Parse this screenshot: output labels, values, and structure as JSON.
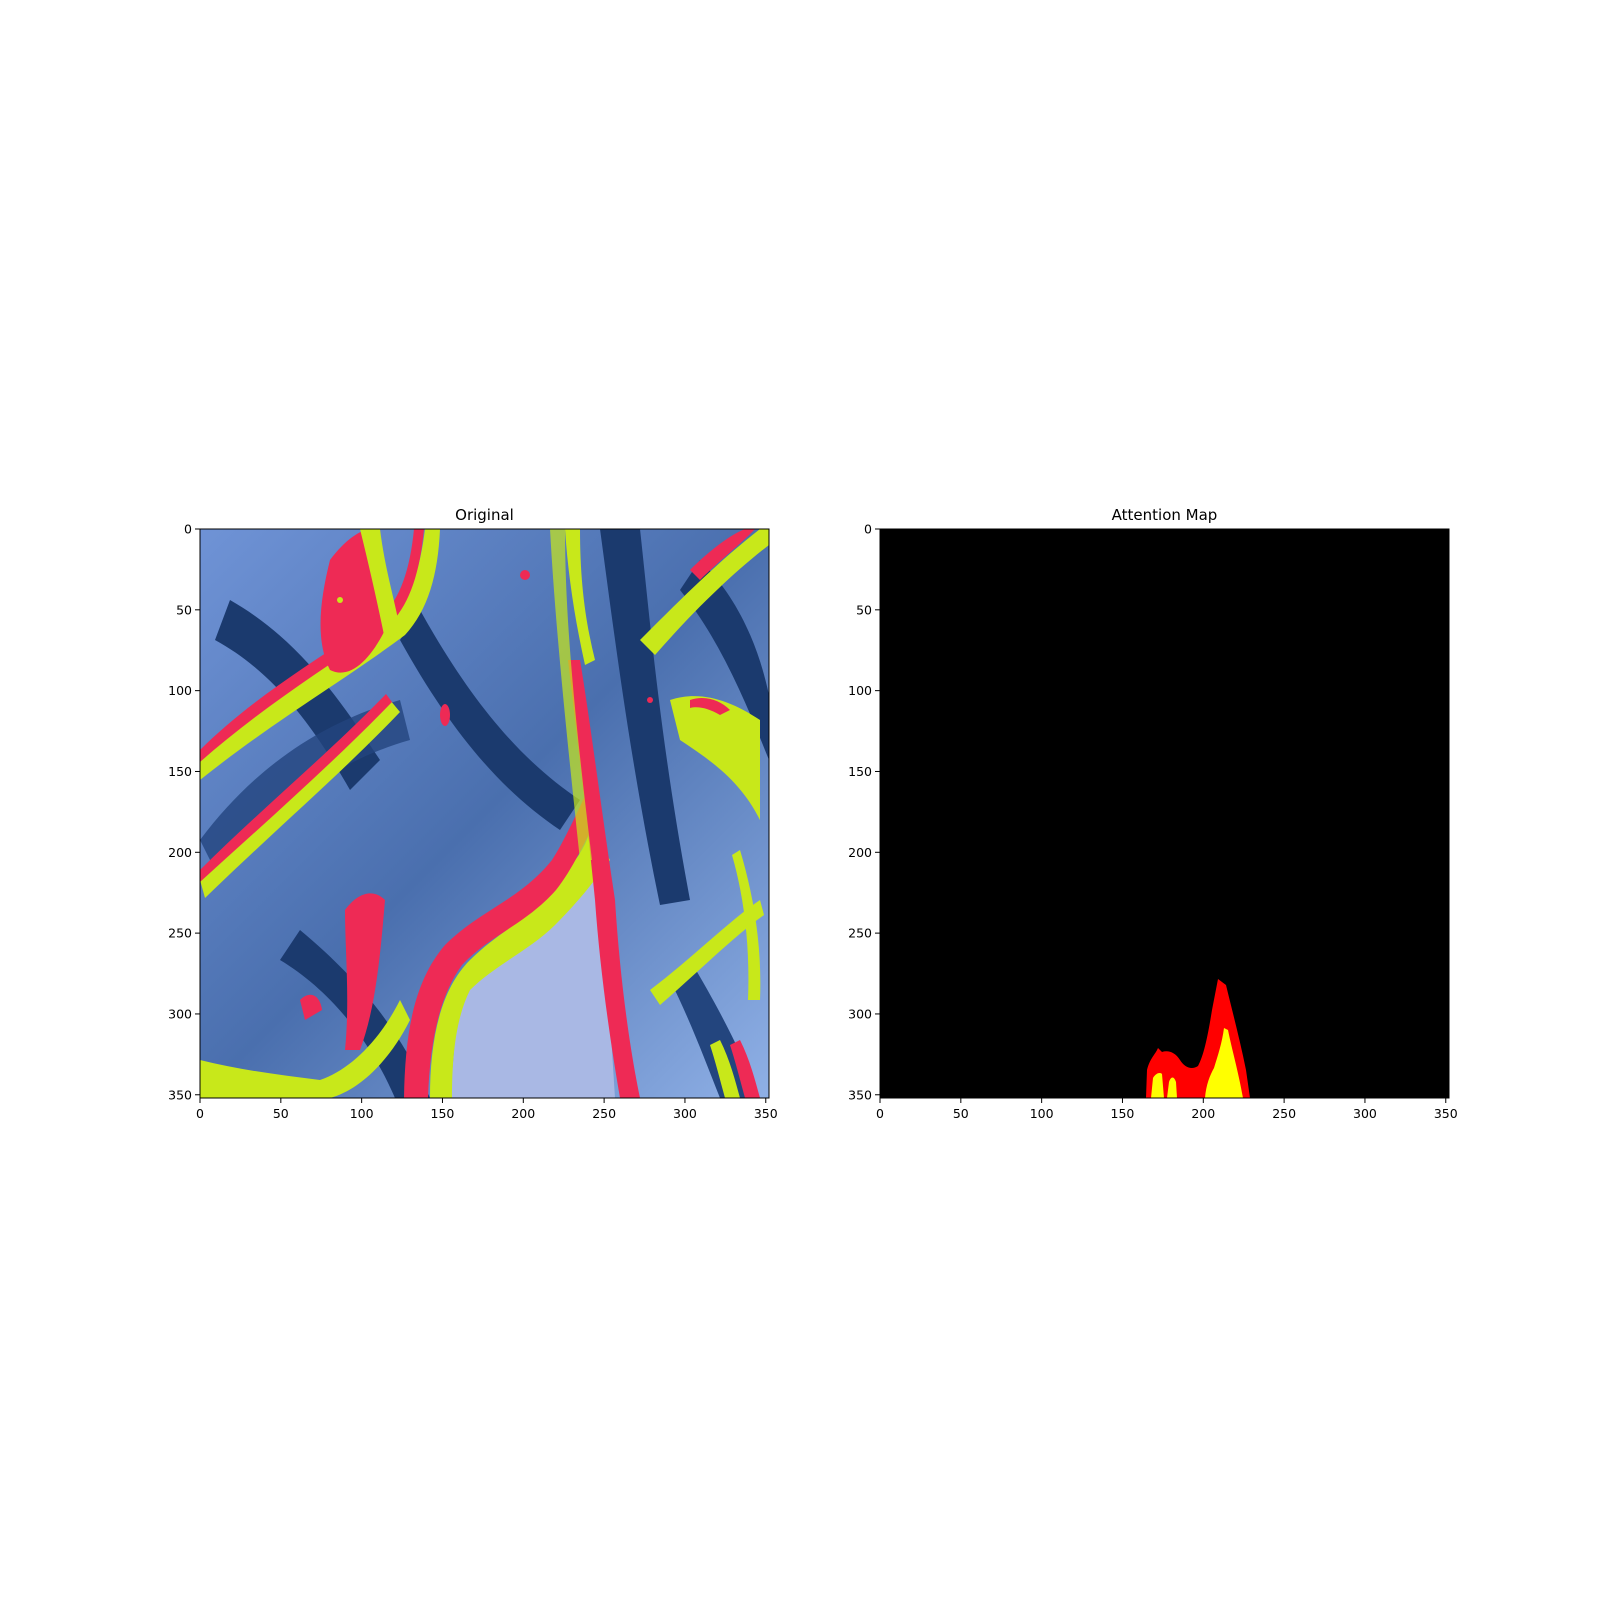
{
  "chart_data": [
    {
      "type": "heatmap",
      "title": "Original",
      "xlabel": "",
      "ylabel": "",
      "xlim": [
        0,
        352
      ],
      "ylim": [
        352,
        0
      ],
      "xticks": [
        0,
        50,
        100,
        150,
        200,
        250,
        300,
        350
      ],
      "yticks": [
        0,
        50,
        100,
        150,
        200,
        250,
        300,
        350
      ],
      "grid": false,
      "colors": {
        "background_light": "#8fb0e6",
        "background_dark": "#1b3a6e",
        "pale_region": "#a9b8e4",
        "yellow_band": "#c8e81a",
        "red_band": "#ee2a55"
      }
    },
    {
      "type": "heatmap",
      "title": "Attention Map",
      "xlabel": "",
      "ylabel": "",
      "xlim": [
        0,
        352
      ],
      "ylim": [
        352,
        0
      ],
      "xticks": [
        0,
        50,
        100,
        150,
        200,
        250,
        300,
        350
      ],
      "yticks": [
        0,
        50,
        100,
        150,
        200,
        250,
        300,
        350
      ],
      "grid": false,
      "colors": {
        "background": "#000000",
        "mid_attention": "#ff0000",
        "high_attention": "#ffff00"
      },
      "hotspots": [
        {
          "level": "mid",
          "x": [
            165,
            190
          ],
          "y_top": 322
        },
        {
          "level": "mid",
          "x": [
            190,
            232
          ],
          "y_top": 279
        },
        {
          "level": "high",
          "x": [
            169,
            184
          ],
          "y_top": 338
        },
        {
          "level": "high",
          "x": [
            203,
            228
          ],
          "y_top": 301
        }
      ]
    }
  ]
}
